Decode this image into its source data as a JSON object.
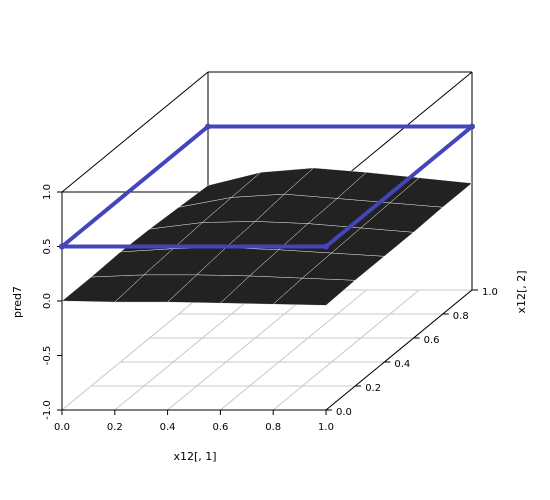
{
  "chart_data": {
    "type": "scatter3d",
    "xlabel": "x12[, 1]",
    "ylabel": "x12[, 2]",
    "zlabel": "pred7",
    "xlim": [
      0,
      1
    ],
    "ylim": [
      0,
      1
    ],
    "zlim": [
      -1,
      1
    ],
    "xticks": [
      {
        "value": 0,
        "label": "0.0"
      },
      0.2,
      0.4,
      0.6,
      0.8,
      {
        "value": 1,
        "label": "1.0"
      }
    ],
    "yticks": [
      {
        "value": 0,
        "label": "0.0"
      },
      0.2,
      0.4,
      0.6,
      0.8,
      {
        "value": 1,
        "label": "1.0"
      }
    ],
    "zticks": [
      {
        "value": -1,
        "label": "-1.0"
      },
      -0.5,
      {
        "value": 0,
        "label": "0.0"
      },
      0.5,
      {
        "value": 1,
        "label": "1.0"
      }
    ],
    "grid": true,
    "surface": {
      "color": "#222222",
      "x": [
        0,
        0.2,
        0.4,
        0.6,
        0.8,
        1
      ],
      "y": [
        0,
        0.2,
        0.4,
        0.6,
        0.8,
        1
      ],
      "z": [
        [
          0,
          -0.01,
          -0.01,
          -0.02,
          -0.03,
          -0.04
        ],
        [
          0,
          0.02,
          0.02,
          0.01,
          -0.01,
          -0.03
        ],
        [
          0.01,
          0.04,
          0.05,
          0.03,
          0,
          -0.03
        ],
        [
          0,
          0.06,
          0.07,
          0.05,
          0.01,
          -0.03
        ],
        [
          -0.02,
          0.07,
          0.1,
          0.06,
          0.02,
          -0.02
        ],
        [
          -0.04,
          0.08,
          0.12,
          0.08,
          0.03,
          -0.02
        ]
      ]
    },
    "line": {
      "color": "#4444bb",
      "x": [
        0,
        1,
        1,
        0,
        0
      ],
      "y": [
        0,
        0,
        1,
        1,
        0
      ],
      "z": [
        0.5,
        0.5,
        0.5,
        0.5,
        0.5
      ]
    }
  }
}
